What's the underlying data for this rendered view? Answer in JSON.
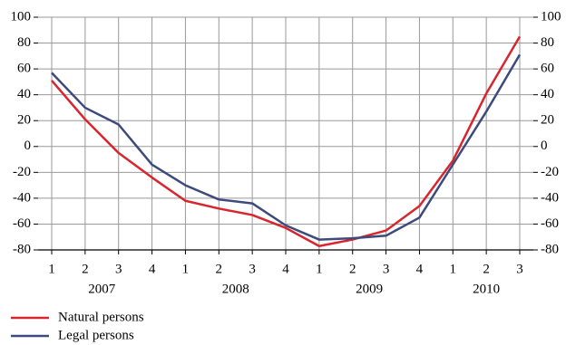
{
  "chart_data": {
    "type": "line",
    "categories": [
      "1",
      "2",
      "3",
      "4",
      "1",
      "2",
      "3",
      "4",
      "1",
      "2",
      "3",
      "4",
      "1",
      "2",
      "3"
    ],
    "years": [
      "2007",
      "2008",
      "2009",
      "2010"
    ],
    "series": [
      {
        "name": "Natural persons",
        "color": "#d7262e",
        "values": [
          51,
          21,
          -5,
          -24,
          -42,
          -48,
          -53,
          -63,
          -77,
          -72,
          -65,
          -46,
          -11,
          41,
          85
        ]
      },
      {
        "name": "Legal persons",
        "color": "#3d4a7c",
        "values": [
          57,
          30,
          17,
          -14,
          -30,
          -41,
          -44,
          -61,
          -72,
          -71,
          -69,
          -55,
          -14,
          27,
          71
        ]
      }
    ],
    "ylim": [
      -80,
      100
    ],
    "yticks": [
      -80,
      -60,
      -40,
      -20,
      0,
      20,
      40,
      60,
      80,
      100
    ],
    "y2lim": [
      -80,
      100
    ],
    "y2ticks": [
      -80,
      -60,
      -40,
      -20,
      0,
      20,
      40,
      60,
      80,
      100
    ],
    "grid": true,
    "legend": "bottom-left"
  }
}
